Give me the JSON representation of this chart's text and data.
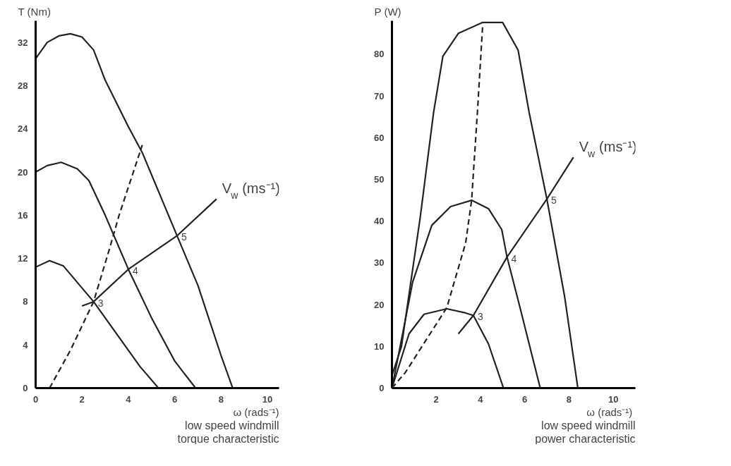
{
  "chart_data": [
    {
      "type": "line",
      "ylabel": "T (Nm)",
      "xlabel": "ω (rads⁻¹)",
      "xlim": [
        0,
        10.5
      ],
      "ylim": [
        0,
        34
      ],
      "xticks": [
        0,
        2,
        4,
        6,
        8,
        10
      ],
      "yticks": [
        0,
        4,
        8,
        12,
        16,
        20,
        24,
        28,
        32
      ],
      "grid": false,
      "series": [
        {
          "color": "#222222",
          "line_style": "solid",
          "x": [
            0,
            0.5,
            1,
            1.5,
            2,
            2.5,
            3,
            4,
            4.6,
            6.1,
            7,
            8,
            8.5
          ],
          "values": [
            30.5,
            32,
            32.6,
            32.8,
            32.5,
            31.3,
            28.5,
            24.2,
            21.8,
            14.1,
            9.5,
            3,
            0
          ]
        },
        {
          "color": "#222222",
          "line_style": "solid",
          "x": [
            0,
            0.5,
            1.1,
            1.8,
            2.3,
            3,
            4,
            5,
            6,
            6.9
          ],
          "values": [
            20,
            20.6,
            20.9,
            20.3,
            19.2,
            16,
            11,
            6.5,
            2.5,
            0
          ]
        },
        {
          "color": "#222222",
          "line_style": "solid",
          "x": [
            0,
            0.6,
            1.2,
            2.5,
            3.5,
            4.5,
            5.3
          ],
          "values": [
            11.2,
            11.8,
            11.3,
            8,
            5,
            2,
            0
          ]
        },
        {
          "color": "#222222",
          "line_style": "dashed",
          "x": [
            0.6,
            1.5,
            2.5,
            3.2,
            3.6,
            4.6
          ],
          "values": [
            0,
            3.5,
            8,
            13,
            16,
            22.5
          ]
        },
        {
          "color": "#222222",
          "line_style": "solid",
          "x": [
            2,
            2.5,
            4,
            6.1,
            7.8
          ],
          "values": [
            7.6,
            8,
            11,
            14.1,
            17.5
          ]
        }
      ],
      "annotations": [
        {
          "text": "3",
          "x": 2.5,
          "y": 8
        },
        {
          "text": "4",
          "x": 4,
          "y": 11
        },
        {
          "text": "5",
          "x": 6.1,
          "y": 14.1
        },
        {
          "text": "V$_{w}$ (ms⁻¹)",
          "x": 7.8,
          "y": 17.5
        },
        "low speed windmill\ntorque characteristic"
      ]
    },
    {
      "type": "line",
      "ylabel": "P  (W)",
      "xlabel": "ω  (rads⁻¹)",
      "xlim": [
        0,
        11
      ],
      "ylim": [
        0,
        88
      ],
      "xticks": [
        2,
        4,
        6,
        8,
        10
      ],
      "yticks": [
        0,
        10,
        20,
        30,
        40,
        50,
        60,
        70,
        80
      ],
      "grid": false,
      "series": [
        {
          "color": "#222222",
          "line_style": "solid",
          "x": [
            0,
            0.43,
            1.28,
            1.88,
            2.3,
            3,
            4.1,
            5,
            5.7,
            6.2,
            7,
            7.8,
            8.4
          ],
          "values": [
            3,
            10,
            41,
            66,
            79.5,
            85,
            87.6,
            87.6,
            81,
            66,
            45.3,
            22,
            0
          ]
        },
        {
          "color": "#222222",
          "line_style": "solid",
          "x": [
            0,
            0.26,
            0.94,
            1.8,
            2.65,
            3.6,
            4.36,
            4.96,
            5.2,
            5.8,
            6.7
          ],
          "values": [
            0,
            7,
            25.5,
            39,
            43.5,
            45,
            43,
            38,
            31.4,
            19,
            0
          ]
        },
        {
          "color": "#222222",
          "line_style": "solid",
          "x": [
            0,
            0.77,
            1.45,
            2.48,
            3.33,
            3.68,
            4.36,
            5.04
          ],
          "values": [
            0,
            13,
            17.7,
            19,
            18,
            17.4,
            10.6,
            0
          ]
        },
        {
          "color": "#222222",
          "line_style": "dashed",
          "x": [
            0,
            0.6,
            2.48,
            3.33,
            3.6,
            3.86,
            4.1
          ],
          "values": [
            0,
            3.7,
            19.3,
            34.8,
            45,
            66,
            87
          ]
        },
        {
          "color": "#222222",
          "line_style": "solid",
          "x": [
            3,
            3.68,
            5.2,
            7,
            8.2
          ],
          "values": [
            13,
            17.4,
            31.4,
            45.3,
            55.3
          ]
        }
      ],
      "annotations": [
        {
          "text": "3",
          "x": 3.68,
          "y": 17.4
        },
        {
          "text": "4",
          "x": 5.2,
          "y": 31.4
        },
        {
          "text": "5",
          "x": 7,
          "y": 45.3
        },
        {
          "text": "V$_{w}$ (ms⁻¹)",
          "x": 8.2,
          "y": 55.3
        },
        "low speed windmill\npower characteristic"
      ]
    }
  ]
}
